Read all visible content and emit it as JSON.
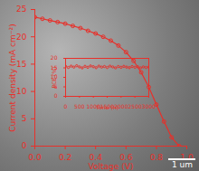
{
  "chart_data": [
    {
      "type": "line",
      "marker": "circle",
      "color": "#e8302a",
      "x_label": "Voltage (V)",
      "y_label": "Current density (mA cm⁻²)",
      "x": [
        0,
        0.05,
        0.1,
        0.15,
        0.2,
        0.25,
        0.3,
        0.35,
        0.4,
        0.45,
        0.5,
        0.55,
        0.6,
        0.65,
        0.7,
        0.75,
        0.8,
        0.85,
        0.9,
        0.95
      ],
      "values": [
        23.6,
        23.3,
        23.0,
        22.7,
        22.4,
        22.0,
        21.6,
        21.1,
        20.6,
        20.0,
        19.3,
        18.4,
        17.2,
        15.6,
        13.5,
        10.8,
        7.6,
        4.5,
        1.6,
        0
      ],
      "xlim": [
        0,
        1.0
      ],
      "xticks": [
        {
          "value": 0,
          "label": "0.0"
        },
        0.2,
        0.4,
        0.6,
        0.8,
        {
          "value": 1.0,
          "label": "1.0"
        }
      ],
      "ylim": [
        0,
        25
      ],
      "yticks": [
        0,
        5,
        10,
        15,
        20,
        25
      ],
      "annotation": "1 um"
    },
    {
      "type": "scatter",
      "marker": "circle",
      "color": "#e8302a",
      "x_label": "Time (h)",
      "y_label": "PCE (%)",
      "x": [
        0,
        100,
        200,
        300,
        400,
        500,
        600,
        700,
        800,
        900,
        1000,
        1100,
        1200,
        1300,
        1400,
        1500,
        1600,
        1700,
        1800,
        1900,
        2000,
        2100,
        2200,
        2300,
        2400,
        2500,
        2600,
        2700,
        2800,
        2900,
        3000
      ],
      "values": [
        15.8,
        15.2,
        15.9,
        15.4,
        16.1,
        15.5,
        15.0,
        15.8,
        15.3,
        16.0,
        15.6,
        15.1,
        15.9,
        15.4,
        15.7,
        15.2,
        15.9,
        15.5,
        15.0,
        15.7,
        15.3,
        15.8,
        15.4,
        15.1,
        15.7,
        15.3,
        15.6,
        15.0,
        15.5,
        15.2,
        15.4
      ],
      "xlim": [
        0,
        3000
      ],
      "xticks": [
        0,
        500,
        1000,
        1500,
        2000,
        2500,
        3000
      ],
      "ylim": [
        0,
        20
      ],
      "yticks": [
        0,
        5,
        10,
        15,
        20
      ]
    }
  ]
}
